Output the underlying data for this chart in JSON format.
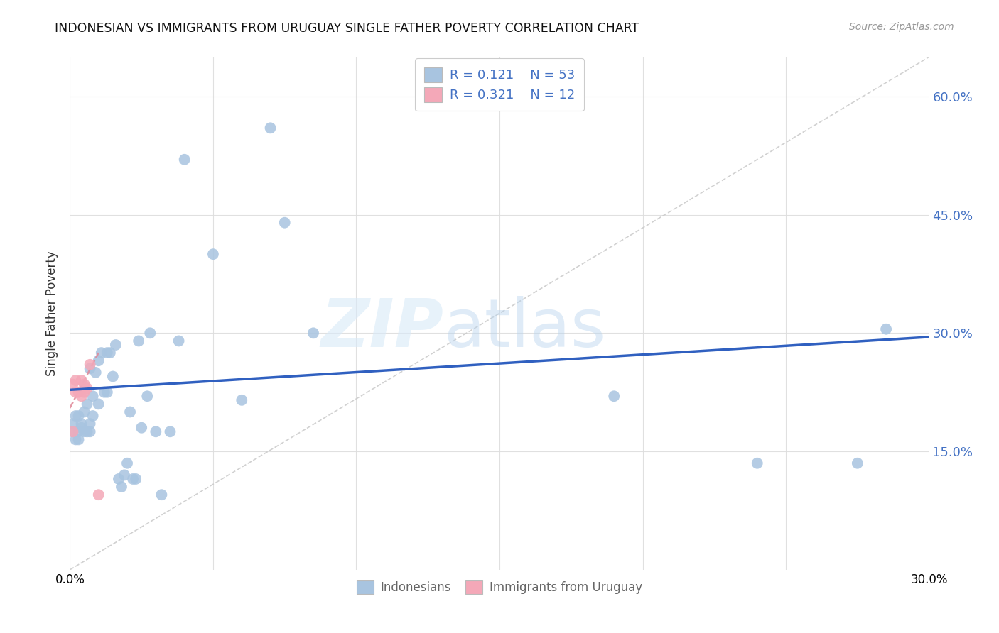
{
  "title": "INDONESIAN VS IMMIGRANTS FROM URUGUAY SINGLE FATHER POVERTY CORRELATION CHART",
  "source": "Source: ZipAtlas.com",
  "ylabel": "Single Father Poverty",
  "ytick_labels": [
    "15.0%",
    "30.0%",
    "45.0%",
    "60.0%"
  ],
  "ytick_values": [
    0.15,
    0.3,
    0.45,
    0.6
  ],
  "xlim": [
    0.0,
    0.3
  ],
  "ylim": [
    0.0,
    0.65
  ],
  "legend_r1": "R = 0.121",
  "legend_n1": "N = 53",
  "legend_r2": "R = 0.321",
  "legend_n2": "N = 12",
  "blue_color": "#a8c4e0",
  "pink_color": "#f4a8b8",
  "line_blue": "#3060c0",
  "line_pink_dashed": "#e08898",
  "gray_diag_color": "#cccccc",
  "indonesian_x": [
    0.001,
    0.001,
    0.002,
    0.002,
    0.003,
    0.003,
    0.003,
    0.004,
    0.004,
    0.005,
    0.005,
    0.006,
    0.006,
    0.007,
    0.007,
    0.007,
    0.008,
    0.008,
    0.009,
    0.01,
    0.01,
    0.011,
    0.012,
    0.013,
    0.013,
    0.014,
    0.015,
    0.016,
    0.017,
    0.018,
    0.019,
    0.02,
    0.021,
    0.022,
    0.023,
    0.024,
    0.025,
    0.027,
    0.028,
    0.03,
    0.032,
    0.035,
    0.038,
    0.04,
    0.05,
    0.06,
    0.07,
    0.075,
    0.085,
    0.19,
    0.24,
    0.275,
    0.285
  ],
  "indonesian_y": [
    0.185,
    0.175,
    0.195,
    0.165,
    0.175,
    0.195,
    0.165,
    0.18,
    0.185,
    0.2,
    0.175,
    0.21,
    0.175,
    0.255,
    0.185,
    0.175,
    0.22,
    0.195,
    0.25,
    0.265,
    0.21,
    0.275,
    0.225,
    0.275,
    0.225,
    0.275,
    0.245,
    0.285,
    0.115,
    0.105,
    0.12,
    0.135,
    0.2,
    0.115,
    0.115,
    0.29,
    0.18,
    0.22,
    0.3,
    0.175,
    0.095,
    0.175,
    0.29,
    0.52,
    0.4,
    0.215,
    0.56,
    0.44,
    0.3,
    0.22,
    0.135,
    0.135,
    0.305
  ],
  "uruguay_x": [
    0.001,
    0.001,
    0.002,
    0.002,
    0.003,
    0.004,
    0.004,
    0.005,
    0.005,
    0.006,
    0.007,
    0.01
  ],
  "uruguay_y": [
    0.175,
    0.235,
    0.24,
    0.225,
    0.225,
    0.24,
    0.22,
    0.235,
    0.225,
    0.23,
    0.26,
    0.095
  ],
  "blue_line_x": [
    0.0,
    0.3
  ],
  "blue_line_y": [
    0.228,
    0.295
  ],
  "pink_line_x": [
    0.0,
    0.01
  ],
  "pink_line_y": [
    0.205,
    0.275
  ],
  "diag_line_x": [
    0.0,
    0.3
  ],
  "diag_line_y": [
    0.0,
    0.65
  ]
}
